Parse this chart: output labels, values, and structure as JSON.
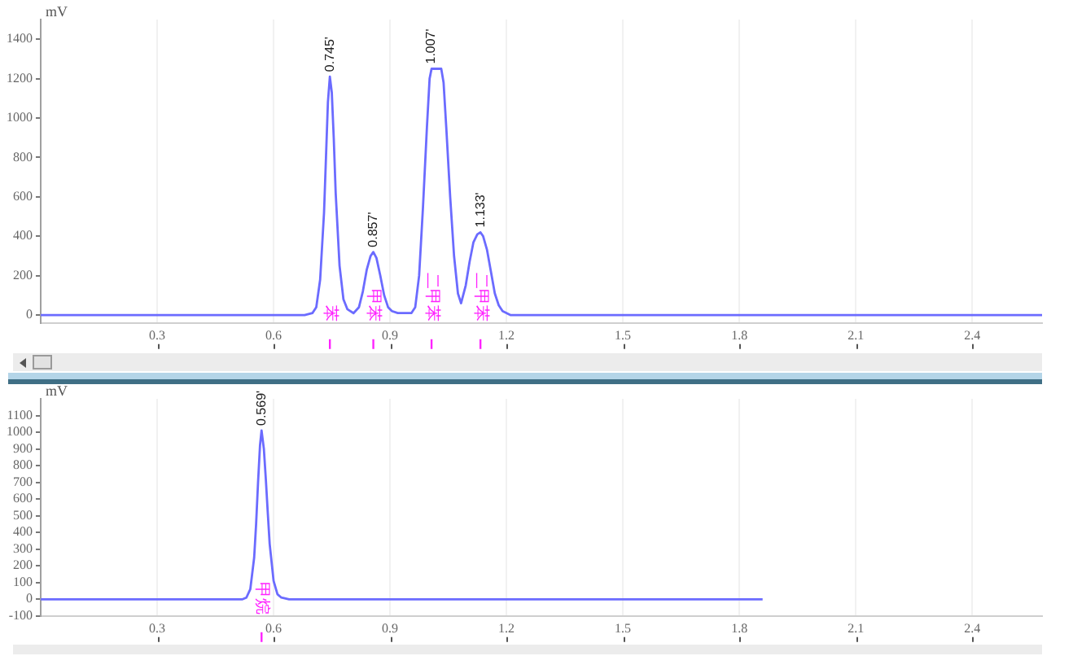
{
  "chart_data": [
    {
      "type": "line",
      "ylabel": "mV",
      "color": "#6b6bff",
      "marker": "none",
      "grid": "x",
      "x": [
        0,
        0.3,
        0.6,
        0.68,
        0.7,
        0.71,
        0.72,
        0.73,
        0.735,
        0.74,
        0.745,
        0.75,
        0.755,
        0.76,
        0.77,
        0.78,
        0.79,
        0.806,
        0.82,
        0.83,
        0.84,
        0.85,
        0.857,
        0.865,
        0.875,
        0.885,
        0.895,
        0.905,
        0.92,
        0.94,
        0.955,
        0.965,
        0.975,
        0.985,
        0.995,
        1.002,
        1.007,
        1.032,
        1.038,
        1.045,
        1.055,
        1.065,
        1.075,
        1.083,
        1.095,
        1.105,
        1.115,
        1.125,
        1.133,
        1.14,
        1.15,
        1.16,
        1.17,
        1.18,
        1.19,
        1.21,
        1.3,
        1.8,
        2.58
      ],
      "values": [
        0,
        0,
        0,
        0,
        10,
        40,
        180,
        520,
        800,
        1080,
        1210,
        1130,
        900,
        620,
        250,
        80,
        30,
        10,
        40,
        120,
        230,
        300,
        320,
        290,
        200,
        100,
        40,
        20,
        10,
        10,
        10,
        40,
        200,
        550,
        950,
        1200,
        1250,
        1250,
        1180,
        950,
        600,
        300,
        110,
        60,
        150,
        270,
        370,
        410,
        420,
        400,
        330,
        220,
        110,
        50,
        20,
        0,
        0,
        0,
        0
      ],
      "xlim": [
        0,
        2.58
      ],
      "xticks": [
        0.3,
        0.6,
        0.9,
        1.2,
        1.5,
        1.8,
        2.1,
        2.4
      ],
      "ylim": [
        -40,
        1500
      ],
      "yticks": [
        0,
        200,
        400,
        600,
        800,
        1000,
        1200,
        1400
      ],
      "annotations": [
        {
          "text": "0.745'",
          "x": 0.745,
          "y": 1210
        },
        {
          "text": "0.857'",
          "x": 0.857,
          "y": 320
        },
        {
          "text": "1.007'",
          "x": 1.007,
          "y": 1250
        },
        {
          "text": "1.133'",
          "x": 1.133,
          "y": 420
        },
        {
          "text": "苯",
          "x": 0.745
        },
        {
          "text": "甲苯",
          "x": 0.857
        },
        {
          "text": "二甲苯",
          "x": 1.007
        },
        {
          "text": "二甲苯",
          "x": 1.133
        }
      ]
    },
    {
      "type": "line",
      "ylabel": "mV",
      "color": "#6b6bff",
      "marker": "none",
      "grid": "x",
      "x": [
        0,
        0.3,
        0.5,
        0.52,
        0.53,
        0.54,
        0.55,
        0.555,
        0.56,
        0.565,
        0.569,
        0.575,
        0.58,
        0.585,
        0.59,
        0.6,
        0.61,
        0.62,
        0.64,
        1.2,
        1.86
      ],
      "values": [
        0,
        0,
        0,
        0,
        10,
        60,
        250,
        450,
        700,
        920,
        1010,
        900,
        720,
        520,
        330,
        110,
        30,
        10,
        0,
        0,
        0
      ],
      "xlim": [
        0,
        2.58
      ],
      "xticks": [
        0.3,
        0.6,
        0.9,
        1.2,
        1.5,
        1.8,
        2.1,
        2.4
      ],
      "ylim": [
        -100,
        1200
      ],
      "yticks": [
        -100,
        0,
        100,
        200,
        300,
        400,
        500,
        600,
        700,
        800,
        900,
        1000,
        1100
      ],
      "annotations": [
        {
          "text": "0.569'",
          "x": 0.569,
          "y": 1010
        },
        {
          "text": "甲烷",
          "x": 0.569
        }
      ]
    }
  ]
}
